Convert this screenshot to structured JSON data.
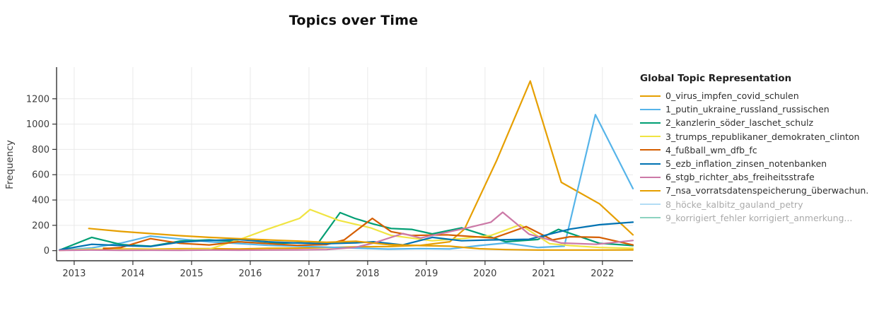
{
  "title": "Topics over Time",
  "y_axis": {
    "title": "Frequency",
    "ticks": [
      0,
      200,
      400,
      600,
      800,
      1000,
      1200
    ]
  },
  "x_axis": {
    "ticks": [
      2013,
      2014,
      2015,
      2016,
      2017,
      2018,
      2019,
      2020,
      2021,
      2022
    ]
  },
  "legend": {
    "title": "Global Topic Representation",
    "items": [
      {
        "label": "0_virus_impfen_covid_schulen",
        "color": "#E69F00",
        "muted": false
      },
      {
        "label": "1_putin_ukraine_russland_russischen",
        "color": "#56B4E9",
        "muted": false
      },
      {
        "label": "2_kanzlerin_söder_laschet_schulz",
        "color": "#009E73",
        "muted": false
      },
      {
        "label": "3_trumps_republikaner_demokraten_clinton",
        "color": "#F0E442",
        "muted": false
      },
      {
        "label": "4_fußball_wm_dfb_fc",
        "color": "#D55E00",
        "muted": false
      },
      {
        "label": "5_ezb_inflation_zinsen_notenbanken",
        "color": "#0072B2",
        "muted": false
      },
      {
        "label": "6_stgb_richter_abs_freiheitsstrafe",
        "color": "#CC79A7",
        "muted": false
      },
      {
        "label": "7_nsa_vorratsdatenspeicherung_überwachun.",
        "color": "#E69F00",
        "muted": false
      },
      {
        "label": "8_höcke_kalbitz_gauland_petry",
        "color": "#56B4E9",
        "muted": true
      },
      {
        "label": "9_korrigiert_fehler korrigiert_anmerkung...",
        "color": "#009E73",
        "muted": true
      }
    ]
  },
  "chart_data": {
    "type": "line",
    "title": "Topics over Time",
    "xlabel": "",
    "ylabel": "Frequency",
    "xlim": [
      2012.7,
      2022.52
    ],
    "ylim": [
      -80,
      1450
    ],
    "grid": true,
    "legend_position": "right",
    "colors": {
      "grid": "#e9e9e9",
      "axis": "#333333",
      "tick_text": "#3c3c3c",
      "muted_text": "#aaaaaa"
    },
    "series": [
      {
        "name": "0_virus_impfen_covid_schulen",
        "color": "#E69F00",
        "hidden": false,
        "points": [
          [
            2013.5,
            20
          ],
          [
            2013.8,
            14
          ],
          [
            2014.3,
            12
          ],
          [
            2014.8,
            15
          ],
          [
            2015.3,
            16
          ],
          [
            2015.8,
            13
          ],
          [
            2016.3,
            18
          ],
          [
            2016.8,
            20
          ],
          [
            2017.3,
            24
          ],
          [
            2017.8,
            30
          ],
          [
            2018.35,
            32
          ],
          [
            2018.9,
            42
          ],
          [
            2019.4,
            70
          ],
          [
            2019.65,
            170
          ],
          [
            2020.2,
            715
          ],
          [
            2020.77,
            1340
          ],
          [
            2021.3,
            540
          ],
          [
            2021.95,
            370
          ],
          [
            2022.52,
            125
          ]
        ]
      },
      {
        "name": "1_putin_ukraine_russland_russischen",
        "color": "#56B4E9",
        "hidden": false,
        "points": [
          [
            2012.75,
            3
          ],
          [
            2013.3,
            22
          ],
          [
            2013.8,
            60
          ],
          [
            2014.3,
            115
          ],
          [
            2014.8,
            92
          ],
          [
            2015.3,
            70
          ],
          [
            2015.8,
            56
          ],
          [
            2016.3,
            42
          ],
          [
            2016.8,
            35
          ],
          [
            2017.3,
            28
          ],
          [
            2017.8,
            20
          ],
          [
            2018.35,
            12
          ],
          [
            2018.9,
            16
          ],
          [
            2019.4,
            13
          ],
          [
            2019.9,
            40
          ],
          [
            2020.35,
            60
          ],
          [
            2020.9,
            25
          ],
          [
            2021.35,
            35
          ],
          [
            2021.88,
            1075
          ],
          [
            2022.52,
            490
          ]
        ]
      },
      {
        "name": "2_kanzlerin_söder_laschet_schulz",
        "color": "#009E73",
        "hidden": false,
        "points": [
          [
            2012.75,
            4
          ],
          [
            2013.3,
            105
          ],
          [
            2013.8,
            48
          ],
          [
            2014.3,
            35
          ],
          [
            2014.8,
            75
          ],
          [
            2015.3,
            85
          ],
          [
            2015.8,
            70
          ],
          [
            2016.3,
            58
          ],
          [
            2016.8,
            62
          ],
          [
            2017.15,
            56
          ],
          [
            2017.53,
            300
          ],
          [
            2017.78,
            255
          ],
          [
            2018.1,
            210
          ],
          [
            2018.4,
            175
          ],
          [
            2018.75,
            168
          ],
          [
            2019.1,
            132
          ],
          [
            2019.6,
            180
          ],
          [
            2020.35,
            70
          ],
          [
            2020.9,
            88
          ],
          [
            2021.25,
            168
          ],
          [
            2021.95,
            58
          ],
          [
            2022.52,
            40
          ]
        ]
      },
      {
        "name": "3_trumps_republikaner_demokraten_clinton",
        "color": "#F0E442",
        "hidden": false,
        "points": [
          [
            2012.75,
            2
          ],
          [
            2013.3,
            12
          ],
          [
            2013.8,
            8
          ],
          [
            2014.3,
            10
          ],
          [
            2014.8,
            8
          ],
          [
            2015.3,
            12
          ],
          [
            2015.8,
            85
          ],
          [
            2016.3,
            170
          ],
          [
            2016.84,
            255
          ],
          [
            2017.02,
            325
          ],
          [
            2017.5,
            240
          ],
          [
            2018.05,
            180
          ],
          [
            2018.4,
            120
          ],
          [
            2019.1,
            78
          ],
          [
            2019.6,
            95
          ],
          [
            2020.1,
            120
          ],
          [
            2020.6,
            205
          ],
          [
            2021.1,
            55
          ],
          [
            2021.45,
            40
          ],
          [
            2021.95,
            25
          ],
          [
            2022.52,
            18
          ]
        ]
      },
      {
        "name": "4_fußball_wm_dfb_fc",
        "color": "#D55E00",
        "hidden": false,
        "points": [
          [
            2013.5,
            15
          ],
          [
            2013.8,
            25
          ],
          [
            2014.3,
            95
          ],
          [
            2014.8,
            58
          ],
          [
            2015.3,
            45
          ],
          [
            2015.8,
            70
          ],
          [
            2016.3,
            55
          ],
          [
            2016.8,
            42
          ],
          [
            2017.3,
            48
          ],
          [
            2017.6,
            85
          ],
          [
            2018.08,
            255
          ],
          [
            2018.4,
            150
          ],
          [
            2018.75,
            120
          ],
          [
            2019.35,
            125
          ],
          [
            2020.15,
            100
          ],
          [
            2020.7,
            190
          ],
          [
            2021.15,
            85
          ],
          [
            2021.45,
            110
          ],
          [
            2021.95,
            105
          ],
          [
            2022.52,
            45
          ]
        ]
      },
      {
        "name": "5_ezb_inflation_zinsen_notenbanken",
        "color": "#0072B2",
        "hidden": false,
        "points": [
          [
            2012.75,
            6
          ],
          [
            2013.3,
            50
          ],
          [
            2013.8,
            40
          ],
          [
            2014.3,
            33
          ],
          [
            2014.8,
            67
          ],
          [
            2015.3,
            80
          ],
          [
            2015.8,
            88
          ],
          [
            2016.3,
            70
          ],
          [
            2016.8,
            60
          ],
          [
            2017.3,
            55
          ],
          [
            2017.8,
            62
          ],
          [
            2018.1,
            70
          ],
          [
            2018.6,
            45
          ],
          [
            2019.1,
            105
          ],
          [
            2019.6,
            78
          ],
          [
            2020.1,
            85
          ],
          [
            2020.75,
            90
          ],
          [
            2021.45,
            170
          ],
          [
            2021.95,
            205
          ],
          [
            2022.52,
            225
          ]
        ]
      },
      {
        "name": "6_stgb_richter_abs_freiheitsstrafe",
        "color": "#CC79A7",
        "hidden": false,
        "points": [
          [
            2012.75,
            2
          ],
          [
            2013.3,
            5
          ],
          [
            2013.8,
            3
          ],
          [
            2014.3,
            4
          ],
          [
            2014.8,
            3
          ],
          [
            2015.3,
            5
          ],
          [
            2015.8,
            4
          ],
          [
            2016.3,
            5
          ],
          [
            2016.8,
            6
          ],
          [
            2017.3,
            8
          ],
          [
            2017.78,
            25
          ],
          [
            2018.1,
            60
          ],
          [
            2018.6,
            135
          ],
          [
            2018.9,
            100
          ],
          [
            2019.1,
            120
          ],
          [
            2019.7,
            180
          ],
          [
            2020.1,
            225
          ],
          [
            2020.3,
            303
          ],
          [
            2020.75,
            130
          ],
          [
            2021.3,
            60
          ],
          [
            2021.9,
            50
          ],
          [
            2022.52,
            80
          ]
        ]
      },
      {
        "name": "7_nsa_vorratsdatenspeicherung_überwachun.",
        "color": "#E69F00",
        "hidden": false,
        "points": [
          [
            2013.25,
            175
          ],
          [
            2013.8,
            152
          ],
          [
            2014.3,
            135
          ],
          [
            2014.8,
            118
          ],
          [
            2015.3,
            105
          ],
          [
            2015.8,
            95
          ],
          [
            2016.3,
            85
          ],
          [
            2016.8,
            76
          ],
          [
            2017.3,
            66
          ],
          [
            2017.8,
            74
          ],
          [
            2018.35,
            48
          ],
          [
            2018.9,
            40
          ],
          [
            2019.4,
            35
          ],
          [
            2019.9,
            15
          ],
          [
            2020.35,
            8
          ],
          [
            2020.9,
            5
          ],
          [
            2021.45,
            5
          ],
          [
            2021.95,
            5
          ],
          [
            2022.52,
            6
          ]
        ]
      },
      {
        "name": "8_höcke_kalbitz_gauland_petry",
        "color": "#56B4E9",
        "hidden": true,
        "points": []
      },
      {
        "name": "9_korrigiert_fehler korrigiert_anmerkung...",
        "color": "#009E73",
        "hidden": true,
        "points": []
      }
    ]
  }
}
